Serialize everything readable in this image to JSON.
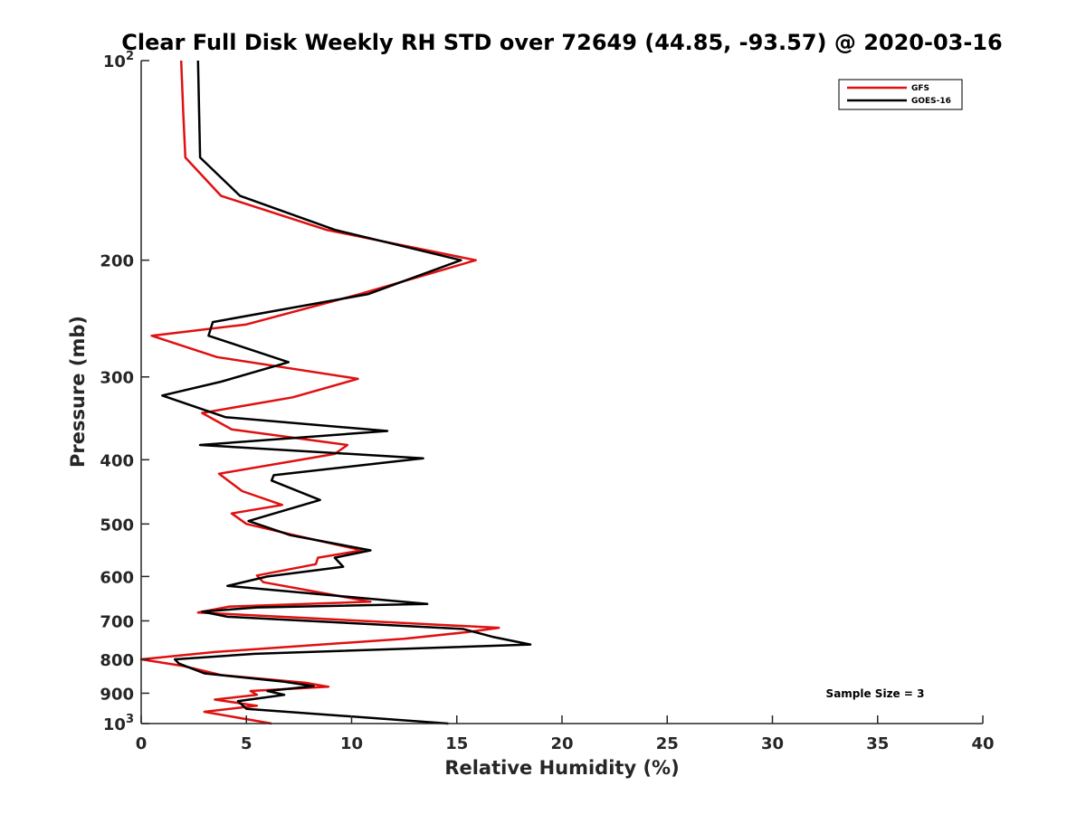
{
  "chart_data": {
    "type": "line",
    "title": "Clear Full Disk Weekly RH STD over 72649 (44.85, -93.57) @ 2020-03-16",
    "xlabel": "Relative Humidity (%)",
    "ylabel": "Pressure (mb)",
    "xlim": [
      0,
      40
    ],
    "ylim": [
      100,
      1000
    ],
    "yscale": "log",
    "y_reversed": true,
    "x_ticks": [
      "0",
      "5",
      "10",
      "15",
      "20",
      "25",
      "30",
      "35",
      "40"
    ],
    "y_ticks": [
      {
        "value": 100,
        "label": "10",
        "sup": "2"
      },
      {
        "value": 200,
        "label": "200",
        "sup": ""
      },
      {
        "value": 300,
        "label": "300",
        "sup": ""
      },
      {
        "value": 400,
        "label": "400",
        "sup": ""
      },
      {
        "value": 500,
        "label": "500",
        "sup": ""
      },
      {
        "value": 600,
        "label": "600",
        "sup": ""
      },
      {
        "value": 700,
        "label": "700",
        "sup": ""
      },
      {
        "value": 800,
        "label": "800",
        "sup": ""
      },
      {
        "value": 900,
        "label": "900",
        "sup": ""
      },
      {
        "value": 1000,
        "label": "10",
        "sup": "3"
      }
    ],
    "grid": false,
    "legend_position": "top-right",
    "annotation": "Sample Size = 3",
    "series": [
      {
        "name": "GFS",
        "color": "#e01010",
        "points": [
          [
            1.9,
            100
          ],
          [
            2.0,
            120
          ],
          [
            2.1,
            140
          ],
          [
            3.8,
            160
          ],
          [
            8.8,
            180
          ],
          [
            15.9,
            200
          ],
          [
            10.4,
            225
          ],
          [
            5.0,
            250
          ],
          [
            0.5,
            260
          ],
          [
            3.6,
            280
          ],
          [
            10.3,
            302
          ],
          [
            7.2,
            322
          ],
          [
            2.9,
            340
          ],
          [
            4.3,
            360
          ],
          [
            9.8,
            380
          ],
          [
            9.2,
            392
          ],
          [
            3.7,
            420
          ],
          [
            4.8,
            446
          ],
          [
            6.7,
            468
          ],
          [
            4.3,
            482
          ],
          [
            5.0,
            500
          ],
          [
            7.3,
            520
          ],
          [
            10.5,
            548
          ],
          [
            8.4,
            562
          ],
          [
            8.3,
            575
          ],
          [
            5.5,
            598
          ],
          [
            5.8,
            612
          ],
          [
            10.9,
            655
          ],
          [
            4.2,
            666
          ],
          [
            2.7,
            680
          ],
          [
            17.0,
            717
          ],
          [
            15.5,
            728
          ],
          [
            12.5,
            745
          ],
          [
            3.5,
            780
          ],
          [
            0.0,
            800
          ],
          [
            2.0,
            819
          ],
          [
            3.8,
            845
          ],
          [
            7.8,
            868
          ],
          [
            8.9,
            880
          ],
          [
            5.2,
            893
          ],
          [
            5.5,
            905
          ],
          [
            3.5,
            920
          ],
          [
            5.5,
            940
          ],
          [
            3.0,
            960
          ],
          [
            6.2,
            1000
          ]
        ]
      },
      {
        "name": "GOES-16",
        "color": "#000000",
        "points": [
          [
            2.7,
            100
          ],
          [
            2.8,
            140
          ],
          [
            4.7,
            160
          ],
          [
            9.2,
            180
          ],
          [
            15.2,
            200
          ],
          [
            10.8,
            225
          ],
          [
            3.4,
            248
          ],
          [
            3.2,
            260
          ],
          [
            7.0,
            285
          ],
          [
            3.8,
            305
          ],
          [
            1.0,
            320
          ],
          [
            4.0,
            345
          ],
          [
            11.7,
            362
          ],
          [
            2.8,
            380
          ],
          [
            13.4,
            398
          ],
          [
            6.3,
            422
          ],
          [
            6.2,
            430
          ],
          [
            8.5,
            460
          ],
          [
            5.1,
            495
          ],
          [
            7.1,
            520
          ],
          [
            10.9,
            548
          ],
          [
            9.2,
            562
          ],
          [
            9.6,
            580
          ],
          [
            6.0,
            600
          ],
          [
            4.1,
            620
          ],
          [
            13.6,
            660
          ],
          [
            5.5,
            668
          ],
          [
            2.9,
            678
          ],
          [
            4.1,
            690
          ],
          [
            15.3,
            720
          ],
          [
            16.7,
            740
          ],
          [
            18.5,
            760
          ],
          [
            5.4,
            785
          ],
          [
            1.6,
            800
          ],
          [
            1.8,
            812
          ],
          [
            3.0,
            840
          ],
          [
            6.8,
            865
          ],
          [
            8.2,
            878
          ],
          [
            6.0,
            893
          ],
          [
            6.8,
            905
          ],
          [
            4.6,
            925
          ],
          [
            5.0,
            950
          ],
          [
            14.6,
            1000
          ]
        ]
      }
    ]
  }
}
